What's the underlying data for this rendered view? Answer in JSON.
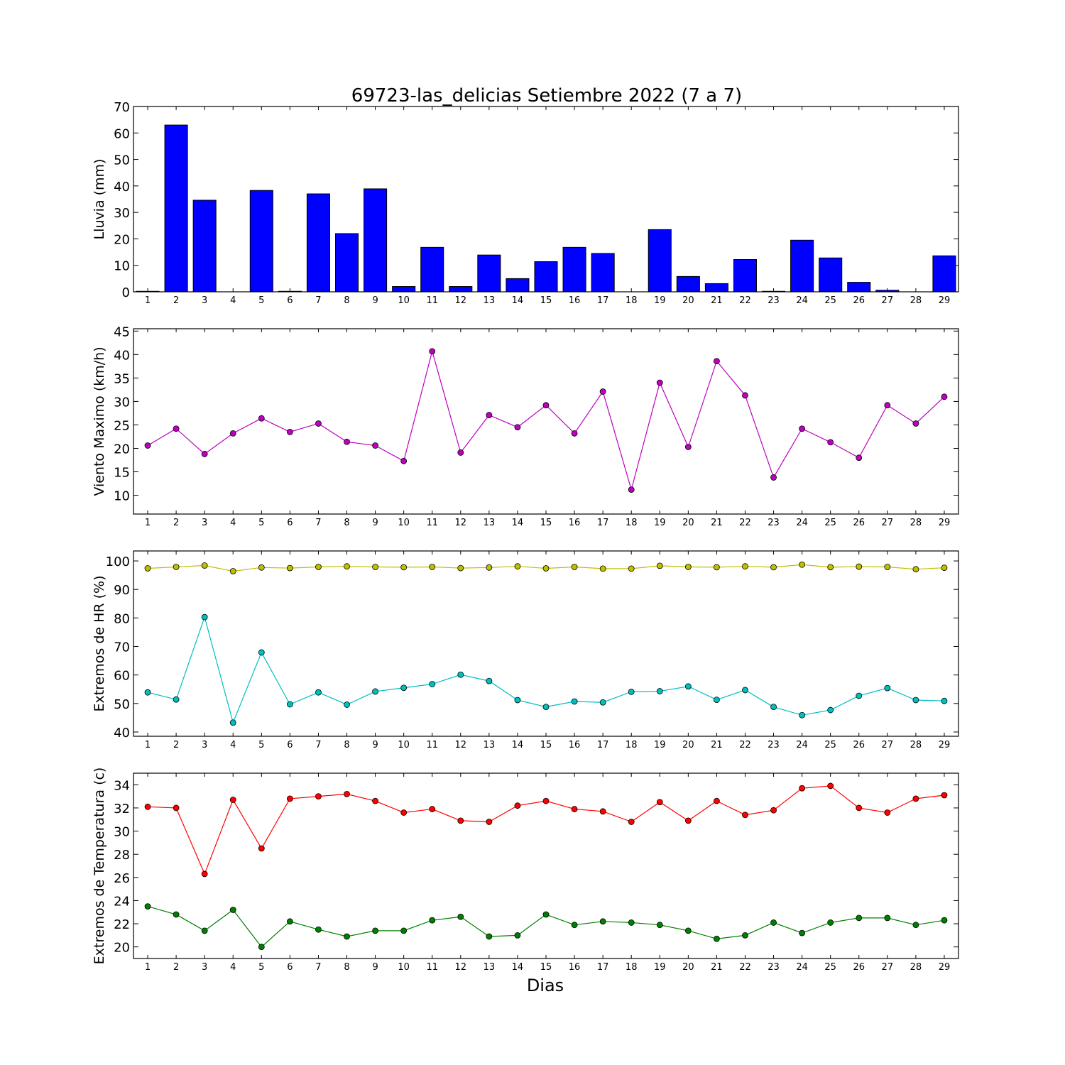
{
  "title": "69723-las_delicias Setiembre 2022  (7 a 7)",
  "xlabel": "Dias",
  "colors": {
    "rain": "#0000ff",
    "wind": "#bf00bf",
    "hr_max": "#bfbf00",
    "hr_min": "#00bfbf",
    "temp_max": "#ff0000",
    "temp_min": "#008000"
  },
  "chart_data": [
    {
      "type": "bar",
      "ylabel": "Lluvia (mm)",
      "ylim": [
        0,
        70
      ],
      "yticks": [
        0,
        10,
        20,
        30,
        40,
        50,
        60,
        70
      ],
      "categories": [
        "1",
        "2",
        "3",
        "4",
        "5",
        "6",
        "7",
        "8",
        "9",
        "10",
        "11",
        "12",
        "13",
        "14",
        "15",
        "16",
        "17",
        "18",
        "19",
        "20",
        "21",
        "22",
        "23",
        "24",
        "25",
        "26",
        "27",
        "28",
        "29"
      ],
      "series": [
        {
          "color": "#0000ff",
          "values": [
            0.2,
            63.0,
            34.6,
            0,
            38.3,
            0.2,
            37.0,
            22.0,
            38.9,
            2.0,
            16.8,
            2.0,
            13.9,
            5.0,
            11.4,
            16.8,
            14.5,
            0,
            23.5,
            5.8,
            3.1,
            12.2,
            0.2,
            19.5,
            12.8,
            3.6,
            0.6,
            0,
            13.6
          ]
        }
      ]
    },
    {
      "type": "line",
      "ylabel": "Viento Maximo (km/h)",
      "ylim": [
        6,
        45.5
      ],
      "yticks": [
        10,
        15,
        20,
        25,
        30,
        35,
        40,
        45
      ],
      "categories": [
        "1",
        "2",
        "3",
        "4",
        "5",
        "6",
        "7",
        "8",
        "9",
        "10",
        "11",
        "12",
        "13",
        "14",
        "15",
        "16",
        "17",
        "18",
        "19",
        "20",
        "21",
        "22",
        "23",
        "24",
        "25",
        "26",
        "27",
        "28",
        "29"
      ],
      "series": [
        {
          "color": "#bf00bf",
          "values": [
            20.6,
            24.2,
            18.8,
            23.2,
            26.4,
            23.5,
            25.3,
            21.4,
            20.6,
            17.3,
            40.7,
            19.1,
            27.1,
            24.5,
            29.2,
            23.2,
            32.1,
            11.2,
            34.0,
            20.3,
            38.6,
            31.3,
            13.8,
            24.2,
            21.3,
            18.0,
            29.2,
            25.3,
            31.0
          ]
        }
      ]
    },
    {
      "type": "line",
      "ylabel": "Extremos de HR (%)",
      "ylim": [
        38.5,
        103.5
      ],
      "yticks": [
        40,
        50,
        60,
        70,
        80,
        90,
        100
      ],
      "categories": [
        "1",
        "2",
        "3",
        "4",
        "5",
        "6",
        "7",
        "8",
        "9",
        "10",
        "11",
        "12",
        "13",
        "14",
        "15",
        "16",
        "17",
        "18",
        "19",
        "20",
        "21",
        "22",
        "23",
        "24",
        "25",
        "26",
        "27",
        "28",
        "29"
      ],
      "series": [
        {
          "color": "#bfbf00",
          "values": [
            97.4,
            97.9,
            98.4,
            96.4,
            97.7,
            97.5,
            97.9,
            98.1,
            97.9,
            97.8,
            97.9,
            97.5,
            97.7,
            98.1,
            97.4,
            97.9,
            97.3,
            97.3,
            98.3,
            97.9,
            97.8,
            98.1,
            97.8,
            98.7,
            97.8,
            98.0,
            97.9,
            97.1,
            97.6
          ]
        },
        {
          "color": "#00bfbf",
          "values": [
            53.9,
            51.4,
            80.3,
            43.3,
            67.9,
            49.7,
            53.9,
            49.6,
            54.2,
            55.5,
            56.8,
            60.1,
            57.9,
            51.2,
            48.8,
            50.7,
            50.4,
            54.1,
            54.3,
            56.0,
            51.3,
            54.7,
            48.8,
            45.9,
            47.7,
            52.7,
            55.4,
            51.2,
            50.9
          ]
        }
      ]
    },
    {
      "type": "line",
      "ylabel": "Extremos de Temperatura (c)",
      "ylim": [
        19,
        35
      ],
      "yticks": [
        20,
        22,
        24,
        26,
        28,
        30,
        32,
        34
      ],
      "categories": [
        "1",
        "2",
        "3",
        "4",
        "5",
        "6",
        "7",
        "8",
        "9",
        "10",
        "11",
        "12",
        "13",
        "14",
        "15",
        "16",
        "17",
        "18",
        "19",
        "20",
        "21",
        "22",
        "23",
        "24",
        "25",
        "26",
        "27",
        "28",
        "29"
      ],
      "series": [
        {
          "color": "#ff0000",
          "values": [
            32.1,
            32.0,
            26.3,
            32.7,
            28.5,
            32.8,
            33.0,
            33.2,
            32.6,
            31.6,
            31.9,
            30.9,
            30.8,
            32.2,
            32.6,
            31.9,
            31.7,
            30.8,
            32.5,
            30.9,
            32.6,
            31.4,
            31.8,
            33.7,
            33.9,
            32.0,
            31.6,
            32.8,
            33.1
          ]
        },
        {
          "color": "#008000",
          "values": [
            23.5,
            22.8,
            21.4,
            23.2,
            20.0,
            22.2,
            21.5,
            20.9,
            21.4,
            21.4,
            22.3,
            22.6,
            20.9,
            21.0,
            22.8,
            21.9,
            22.2,
            22.1,
            21.9,
            21.4,
            20.7,
            21.0,
            22.1,
            21.2,
            22.1,
            22.5,
            22.5,
            21.9,
            22.3
          ]
        }
      ]
    }
  ]
}
